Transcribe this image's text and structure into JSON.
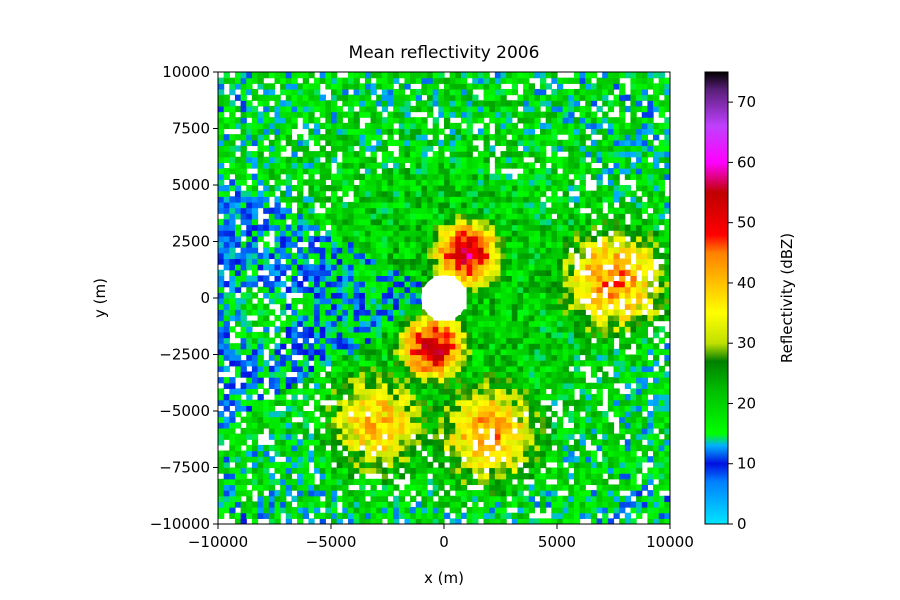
{
  "chart_data": {
    "type": "heatmap",
    "title": "Mean reflectivity 2006",
    "xlabel": "x (m)",
    "ylabel": "y (m)",
    "xlim": [
      -10000,
      10000
    ],
    "ylim": [
      -10000,
      10000
    ],
    "x_ticks": [
      -10000,
      -5000,
      0,
      5000,
      10000
    ],
    "y_ticks": [
      -10000,
      -7500,
      -5000,
      -2500,
      0,
      2500,
      5000,
      7500,
      10000
    ],
    "x_tick_labels": [
      "−10000",
      "−5000",
      "0",
      "5000",
      "10000"
    ],
    "y_tick_labels": [
      "−10000",
      "−7500",
      "−5000",
      "−2500",
      "0",
      "2500",
      "5000",
      "7500",
      "10000"
    ],
    "colorbar": {
      "label": "Reflectivity (dBZ)",
      "range": [
        0,
        75
      ],
      "ticks": [
        0,
        10,
        20,
        30,
        40,
        50,
        60,
        70
      ],
      "tick_labels": [
        "0",
        "10",
        "20",
        "30",
        "40",
        "50",
        "60",
        "70"
      ],
      "colormap_stops": [
        [
          0,
          "#00e5ff"
        ],
        [
          7,
          "#0080ff"
        ],
        [
          10,
          "#0010e0"
        ],
        [
          13,
          "#00b0ff"
        ],
        [
          15,
          "#00ff00"
        ],
        [
          22,
          "#00c000"
        ],
        [
          27,
          "#008000"
        ],
        [
          30,
          "#c0e000"
        ],
        [
          35,
          "#ffff00"
        ],
        [
          40,
          "#ffc000"
        ],
        [
          45,
          "#ff8000"
        ],
        [
          48,
          "#ff0000"
        ],
        [
          55,
          "#c00000"
        ],
        [
          60,
          "#ff00ff"
        ],
        [
          66,
          "#c040ff"
        ],
        [
          72,
          "#5a1f7a"
        ],
        [
          75,
          "#000000"
        ]
      ]
    },
    "center_blank_radius_m": 1000,
    "features": [
      {
        "region": "inner ring near radar, north and north-east",
        "x": 1000,
        "y": 2000,
        "approx_dBZ": 50
      },
      {
        "region": "inner ring south-west",
        "x": -500,
        "y": -2200,
        "approx_dBZ": 50
      },
      {
        "region": "arc east",
        "x": 7500,
        "y": 800,
        "approx_dBZ": 40
      },
      {
        "region": "arc south",
        "x": 2000,
        "y": -6000,
        "approx_dBZ": 38
      },
      {
        "region": "band south-west",
        "x": -3000,
        "y": -5500,
        "approx_dBZ": 35
      },
      {
        "region": "far west sector",
        "x": -8000,
        "y": -1000,
        "approx_dBZ": 15
      }
    ]
  }
}
